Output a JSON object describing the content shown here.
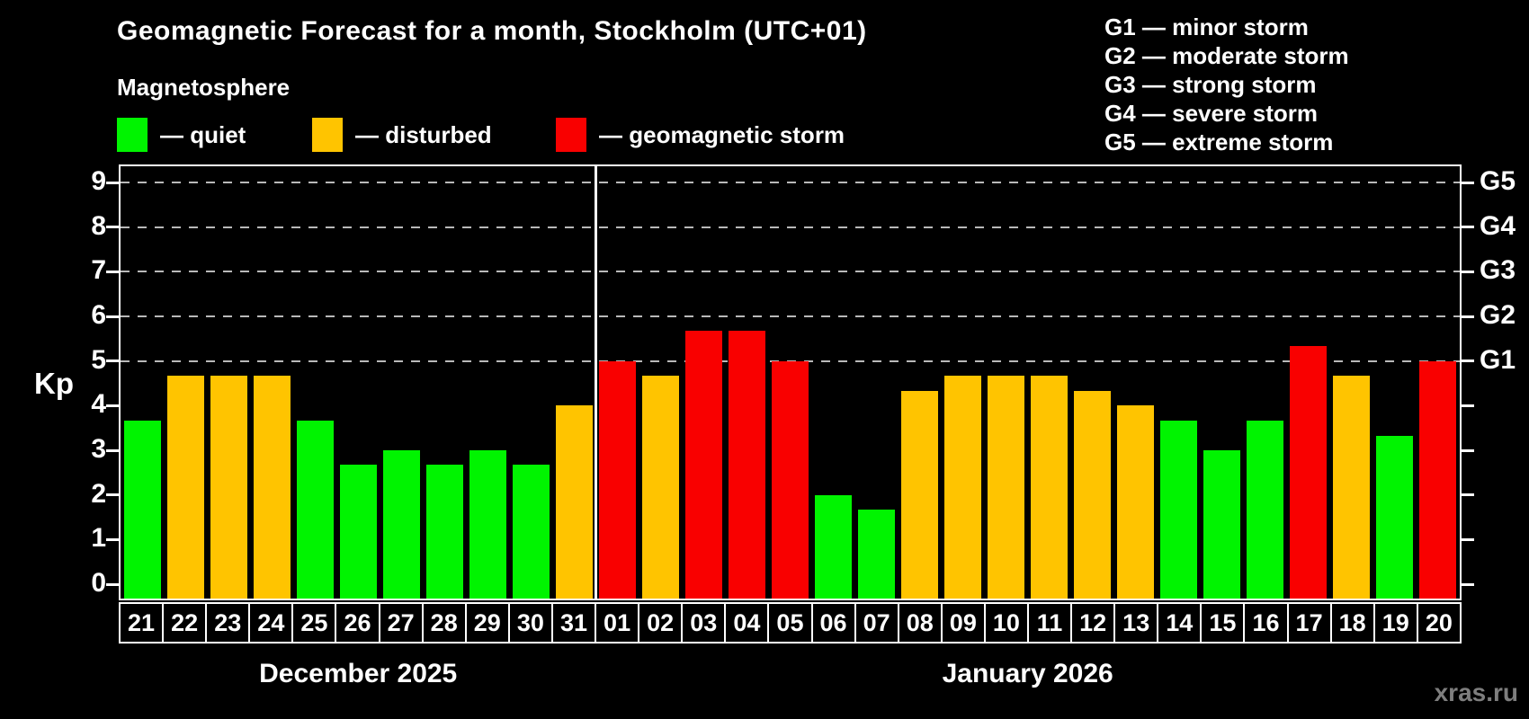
{
  "title": "Geomagnetic Forecast for a month, Stockholm (UTC+01)",
  "subtitle": "Magnetosphere",
  "legend": {
    "quiet": "— quiet",
    "disturbed": "— disturbed",
    "storm": "— geomagnetic storm"
  },
  "g_scale_legend": [
    "G1 — minor storm",
    "G2 — moderate storm",
    "G3 — strong storm",
    "G4 — severe storm",
    "G5 — extreme storm"
  ],
  "watermark": "xras.ru",
  "colors": {
    "quiet": "#00f400",
    "disturbed": "#ffc400",
    "storm": "#f90000",
    "background": "#000000",
    "grid": "#b9b9b9",
    "axis": "#ffffff",
    "watermark": "#7e7e7e"
  },
  "chart_data": {
    "type": "bar",
    "title": "Geomagnetic Forecast for a month, Stockholm (UTC+01)",
    "ylabel": "Kp",
    "ylim": [
      0,
      9
    ],
    "yticks": [
      0,
      1,
      2,
      3,
      4,
      5,
      6,
      7,
      8,
      9
    ],
    "gridlines_kp": [
      5,
      6,
      7,
      8,
      9
    ],
    "grid": true,
    "right_axis_labels": [
      {
        "label": "G1",
        "kp": 5
      },
      {
        "label": "G2",
        "kp": 6
      },
      {
        "label": "G3",
        "kp": 7
      },
      {
        "label": "G4",
        "kp": 8
      },
      {
        "label": "G5",
        "kp": 9
      }
    ],
    "sections": [
      {
        "label": "December 2025",
        "days": [
          {
            "day": "21",
            "kp": 3.67,
            "status": "quiet"
          },
          {
            "day": "22",
            "kp": 4.67,
            "status": "disturbed"
          },
          {
            "day": "23",
            "kp": 4.67,
            "status": "disturbed"
          },
          {
            "day": "24",
            "kp": 4.67,
            "status": "disturbed"
          },
          {
            "day": "25",
            "kp": 3.67,
            "status": "quiet"
          },
          {
            "day": "26",
            "kp": 2.67,
            "status": "quiet"
          },
          {
            "day": "27",
            "kp": 3.0,
            "status": "quiet"
          },
          {
            "day": "28",
            "kp": 2.67,
            "status": "quiet"
          },
          {
            "day": "29",
            "kp": 3.0,
            "status": "quiet"
          },
          {
            "day": "30",
            "kp": 2.67,
            "status": "quiet"
          },
          {
            "day": "31",
            "kp": 4.0,
            "status": "disturbed"
          }
        ]
      },
      {
        "label": "January 2026",
        "days": [
          {
            "day": "01",
            "kp": 5.0,
            "status": "storm"
          },
          {
            "day": "02",
            "kp": 4.67,
            "status": "disturbed"
          },
          {
            "day": "03",
            "kp": 5.67,
            "status": "storm"
          },
          {
            "day": "04",
            "kp": 5.67,
            "status": "storm"
          },
          {
            "day": "05",
            "kp": 5.0,
            "status": "storm"
          },
          {
            "day": "06",
            "kp": 2.0,
            "status": "quiet"
          },
          {
            "day": "07",
            "kp": 1.67,
            "status": "quiet"
          },
          {
            "day": "08",
            "kp": 4.33,
            "status": "disturbed"
          },
          {
            "day": "09",
            "kp": 4.67,
            "status": "disturbed"
          },
          {
            "day": "10",
            "kp": 4.67,
            "status": "disturbed"
          },
          {
            "day": "11",
            "kp": 4.67,
            "status": "disturbed"
          },
          {
            "day": "12",
            "kp": 4.33,
            "status": "disturbed"
          },
          {
            "day": "13",
            "kp": 4.0,
            "status": "disturbed"
          },
          {
            "day": "14",
            "kp": 3.67,
            "status": "quiet"
          },
          {
            "day": "15",
            "kp": 3.0,
            "status": "quiet"
          },
          {
            "day": "16",
            "kp": 3.67,
            "status": "quiet"
          },
          {
            "day": "17",
            "kp": 5.33,
            "status": "storm"
          },
          {
            "day": "18",
            "kp": 4.67,
            "status": "disturbed"
          },
          {
            "day": "19",
            "kp": 3.33,
            "status": "quiet"
          },
          {
            "day": "20",
            "kp": 5.0,
            "status": "storm"
          }
        ]
      }
    ]
  }
}
